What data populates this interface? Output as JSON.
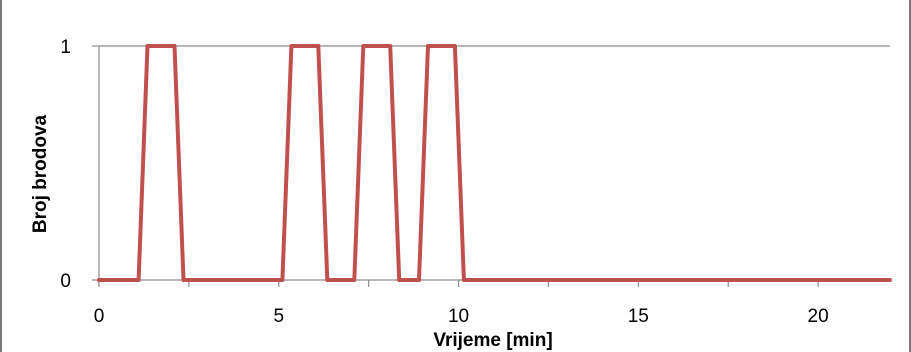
{
  "chart_data": {
    "type": "line",
    "xlabel": "Vrijeme [min]",
    "ylabel": "Broj brodova",
    "xlim": [
      0,
      22
    ],
    "ylim": [
      0,
      1
    ],
    "x_ticks": [
      0,
      5,
      10,
      15,
      20
    ],
    "y_ticks": [
      0,
      1
    ],
    "grid": "horizontal",
    "legend": "none",
    "series_color": "#c0504d",
    "series": [
      {
        "x": [
          0,
          1.1,
          1.35,
          2.1,
          2.35,
          5.1,
          5.35,
          6.1,
          6.35,
          7.1,
          7.35,
          8.1,
          8.35,
          8.9,
          9.15,
          9.9,
          10.15,
          22
        ],
        "y": [
          0,
          0,
          1,
          1,
          0,
          0,
          1,
          1,
          0,
          0,
          1,
          1,
          0,
          0,
          1,
          1,
          0,
          0
        ]
      }
    ]
  }
}
